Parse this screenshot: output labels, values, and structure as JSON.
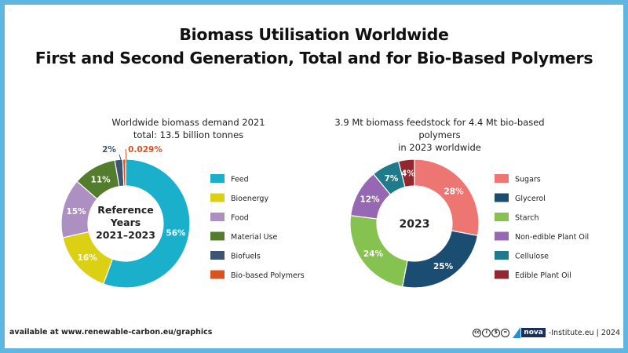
{
  "header": {
    "line1": "Biomass Utilisation Worldwide",
    "line2": "First and Second Generation, Total and for Bio-Based Polymers"
  },
  "chart_data": [
    {
      "type": "pie",
      "variant": "donut",
      "title": "Worldwide biomass demand 2021",
      "subtitle": "total: 13.5 billion tonnes",
      "center_label": [
        "Reference",
        "Years",
        "2021–2023"
      ],
      "categories": [
        "Feed",
        "Bioenergy",
        "Food",
        "Material Use",
        "Biofuels",
        "Bio-based Polymers"
      ],
      "values": [
        56,
        16,
        15,
        11,
        2,
        0.029
      ],
      "labels": [
        "56%",
        "16%",
        "15%",
        "11%",
        "2%",
        "0.029%"
      ],
      "colors": [
        "#1ab0cc",
        "#dcd014",
        "#ad8fc2",
        "#537d2c",
        "#3d5573",
        "#d9531e"
      ],
      "legend": "right"
    },
    {
      "type": "pie",
      "variant": "donut",
      "title": "3.9 Mt biomass feedstock for 4.4 Mt bio-based polymers",
      "subtitle": "in 2023 worldwide",
      "center_label": [
        "2023"
      ],
      "categories": [
        "Sugars",
        "Glycerol",
        "Starch",
        "Non-edible Plant Oil",
        "Cellulose",
        "Edible Plant Oil"
      ],
      "values": [
        28,
        25,
        24,
        12,
        7,
        4
      ],
      "labels": [
        "28%",
        "25%",
        "24%",
        "12%",
        "7%",
        "4%"
      ],
      "colors": [
        "#ee7672",
        "#1b4c72",
        "#86c250",
        "#9667b2",
        "#1f7a8c",
        "#92282f"
      ],
      "legend": "right"
    }
  ],
  "footer": {
    "source": "available at www.renewable-carbon.eu/graphics",
    "brand": "nova",
    "brand_suffix": "-Institute.eu | 2024",
    "license_icons": [
      "cc",
      "by",
      "nc",
      "nd"
    ]
  }
}
